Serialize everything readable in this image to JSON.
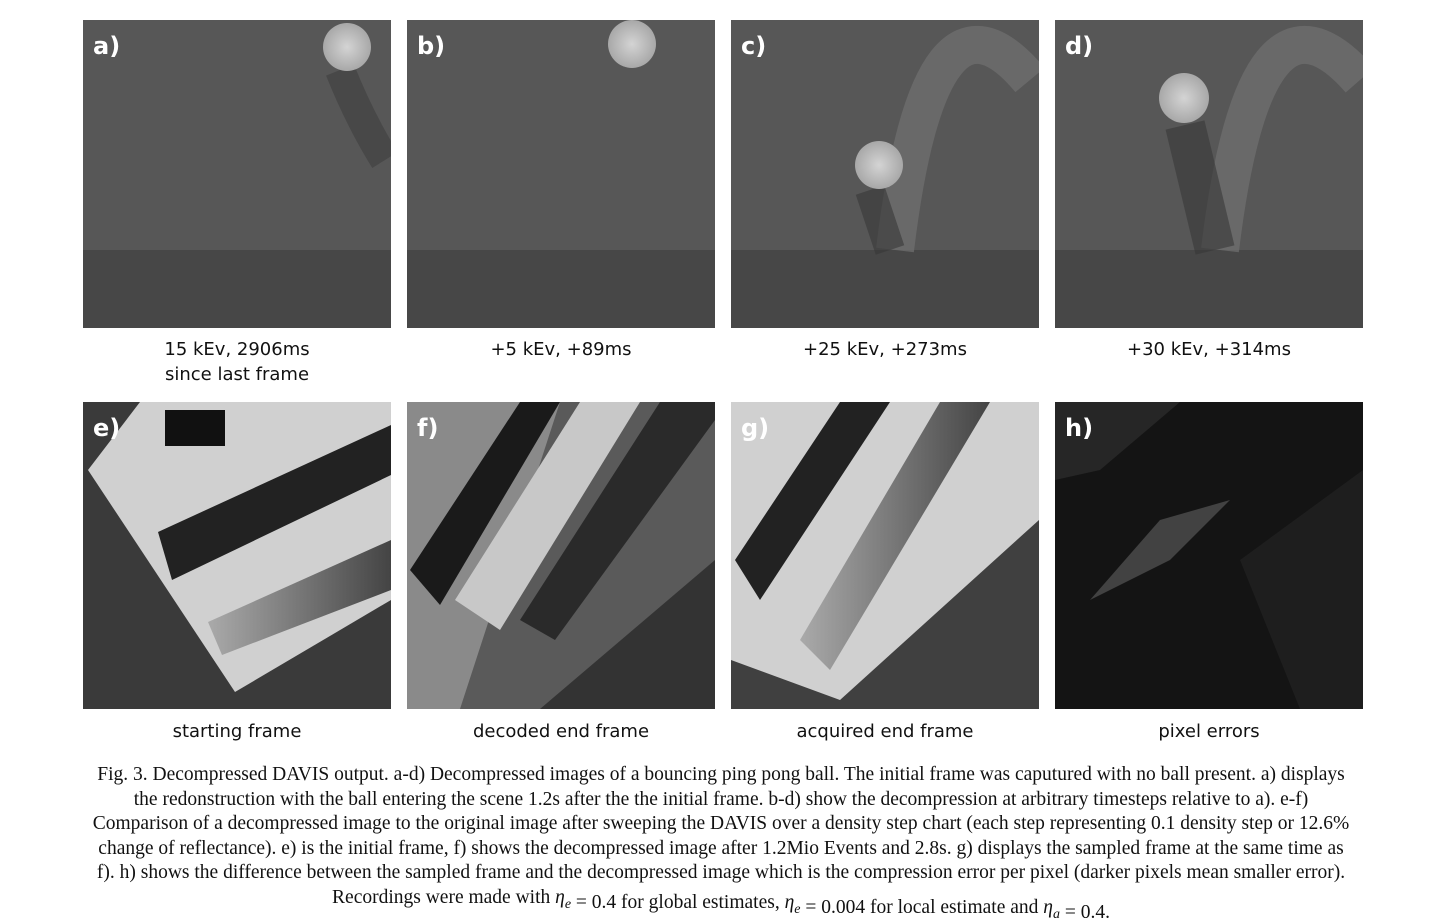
{
  "panels": [
    {
      "label": "a)",
      "caption": [
        "15 kEv, 2906ms",
        "since last frame"
      ]
    },
    {
      "label": "b)",
      "caption": [
        "+5 kEv, +89ms"
      ]
    },
    {
      "label": "c)",
      "caption": [
        "+25 kEv, +273ms"
      ]
    },
    {
      "label": "d)",
      "caption": [
        "+30 kEv, +314ms"
      ]
    },
    {
      "label": "e)",
      "caption": [
        "starting frame"
      ]
    },
    {
      "label": "f)",
      "caption": [
        "decoded end frame"
      ]
    },
    {
      "label": "g)",
      "caption": [
        "acquired end frame"
      ]
    },
    {
      "label": "h)",
      "caption": [
        "pixel errors"
      ]
    }
  ],
  "figure_caption": {
    "lines": [
      "Fig. 3.   Decompressed DAVIS output. a-d) Decompressed images of a bouncing ping pong ball. The initial frame was caputured with no ball present. a) displays",
      "the redonstruction with the ball entering the scene 1.2s after the the initial frame. b-d) show the decompression at arbitrary timesteps relative to a). e-f)",
      "Comparison of a decompressed image to the original image after sweeping the DAVIS over a density step chart (each step representing 0.1 density step or 12.6%",
      "change of reflectance). e) is the initial frame, f) shows the decompressed image after 1.2Mio Events and 2.8s. g) displays the sampled frame at the same time as",
      "f). h) shows the difference between the sampled frame and the decompressed image which is the compression error per pixel (darker pixels mean smaller error)."
    ],
    "last_line": [
      {
        "text": "Recordings were made with "
      },
      {
        "symbol": "η",
        "subscript": "e"
      },
      {
        "text": " = 0.4 for global estimates, "
      },
      {
        "symbol": "η",
        "subscript": "e"
      },
      {
        "text": " = 0.004 for local estimate and "
      },
      {
        "symbol": "η",
        "subscript": "a"
      },
      {
        "text": " = 0.4."
      }
    ]
  }
}
